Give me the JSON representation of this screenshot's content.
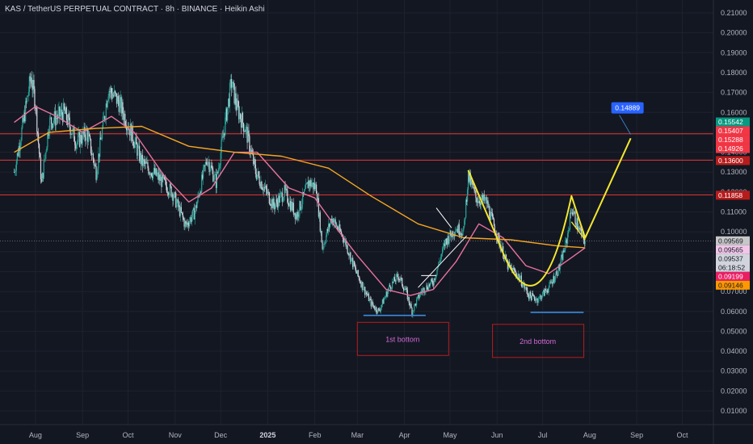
{
  "header": {
    "title": "KAS / TetherUS PERPETUAL CONTRACT · 8h · BINANCE · Heikin Ashi"
  },
  "colors": {
    "bg": "#131722",
    "grid": "#1e222d",
    "up": "#26a69a",
    "down": "#d1d4dc",
    "ma_fast": "#e9739e",
    "ma_slow": "#f5a623",
    "hline": "#e53935",
    "pattern": "#f3e72d",
    "support": "#3b8bdb"
  },
  "chart_data": {
    "type": "candlestick",
    "symbol": "KAS",
    "ylim": [
      0.005,
      0.215
    ],
    "y_ticks": [
      "0.21000",
      "0.20000",
      "0.19000",
      "0.18000",
      "0.17000",
      "0.16000",
      "0.15000",
      "0.14000",
      "0.13000",
      "0.12000",
      "0.11000",
      "0.10000",
      "0.09000",
      "0.08000",
      "0.07000",
      "0.06000",
      "0.05000",
      "0.04000",
      "0.03000",
      "0.02000",
      "0.01000"
    ],
    "x_ticks": [
      {
        "label": "Aug",
        "bold": false
      },
      {
        "label": "Sep",
        "bold": false
      },
      {
        "label": "Oct",
        "bold": false
      },
      {
        "label": "Nov",
        "bold": false
      },
      {
        "label": "Dec",
        "bold": false
      },
      {
        "label": "2025",
        "bold": true
      },
      {
        "label": "Feb",
        "bold": false
      },
      {
        "label": "Mar",
        "bold": false
      },
      {
        "label": "Apr",
        "bold": false
      },
      {
        "label": "May",
        "bold": false
      },
      {
        "label": "Jun",
        "bold": false
      },
      {
        "label": "Jul",
        "bold": false
      },
      {
        "label": "Aug",
        "bold": false
      },
      {
        "label": "Sep",
        "bold": false
      },
      {
        "label": "Oct",
        "bold": false
      }
    ],
    "close_path": [
      [
        "2024-07-18",
        0.13
      ],
      [
        "2024-07-24",
        0.155
      ],
      [
        "2024-07-29",
        0.178
      ],
      [
        "2024-08-01",
        0.165
      ],
      [
        "2024-08-05",
        0.124
      ],
      [
        "2024-08-10",
        0.155
      ],
      [
        "2024-08-20",
        0.16
      ],
      [
        "2024-08-28",
        0.145
      ],
      [
        "2024-09-04",
        0.15
      ],
      [
        "2024-09-10",
        0.13
      ],
      [
        "2024-09-18",
        0.172
      ],
      [
        "2024-09-25",
        0.165
      ],
      [
        "2024-10-03",
        0.15
      ],
      [
        "2024-10-10",
        0.135
      ],
      [
        "2024-10-20",
        0.128
      ],
      [
        "2024-10-30",
        0.12
      ],
      [
        "2024-11-08",
        0.103
      ],
      [
        "2024-11-14",
        0.11
      ],
      [
        "2024-11-22",
        0.137
      ],
      [
        "2024-11-28",
        0.125
      ],
      [
        "2024-12-05",
        0.16
      ],
      [
        "2024-12-08",
        0.175
      ],
      [
        "2024-12-12",
        0.162
      ],
      [
        "2024-12-18",
        0.15
      ],
      [
        "2024-12-24",
        0.13
      ],
      [
        "2025-01-05",
        0.113
      ],
      [
        "2025-01-12",
        0.12
      ],
      [
        "2025-01-20",
        0.108
      ],
      [
        "2025-01-28",
        0.125
      ],
      [
        "2025-02-02",
        0.122
      ],
      [
        "2025-02-06",
        0.092
      ],
      [
        "2025-02-12",
        0.107
      ],
      [
        "2025-02-20",
        0.097
      ],
      [
        "2025-02-28",
        0.08
      ],
      [
        "2025-03-10",
        0.064
      ],
      [
        "2025-03-15",
        0.06
      ],
      [
        "2025-03-22",
        0.072
      ],
      [
        "2025-03-28",
        0.078
      ],
      [
        "2025-04-02",
        0.07
      ],
      [
        "2025-04-06",
        0.06
      ],
      [
        "2025-04-12",
        0.07
      ],
      [
        "2025-04-20",
        0.075
      ],
      [
        "2025-04-28",
        0.095
      ],
      [
        "2025-05-05",
        0.102
      ],
      [
        "2025-05-10",
        0.1
      ],
      [
        "2025-05-13",
        0.128
      ],
      [
        "2025-05-18",
        0.117
      ],
      [
        "2025-05-25",
        0.115
      ],
      [
        "2025-06-01",
        0.098
      ],
      [
        "2025-06-08",
        0.083
      ],
      [
        "2025-06-15",
        0.078
      ],
      [
        "2025-06-22",
        0.068
      ],
      [
        "2025-06-28",
        0.066
      ],
      [
        "2025-07-05",
        0.072
      ],
      [
        "2025-07-12",
        0.082
      ],
      [
        "2025-07-17",
        0.096
      ],
      [
        "2025-07-20",
        0.112
      ],
      [
        "2025-07-25",
        0.101
      ],
      [
        "2025-07-29",
        0.095
      ]
    ],
    "ma_fast": [
      [
        "2024-07-18",
        0.155
      ],
      [
        "2024-08-01",
        0.163
      ],
      [
        "2024-08-15",
        0.158
      ],
      [
        "2024-09-01",
        0.15
      ],
      [
        "2024-09-20",
        0.158
      ],
      [
        "2024-10-05",
        0.15
      ],
      [
        "2024-10-25",
        0.128
      ],
      [
        "2024-11-10",
        0.115
      ],
      [
        "2024-11-25",
        0.122
      ],
      [
        "2024-12-10",
        0.14
      ],
      [
        "2024-12-25",
        0.14
      ],
      [
        "2025-01-15",
        0.122
      ],
      [
        "2025-02-01",
        0.117
      ],
      [
        "2025-02-15",
        0.102
      ],
      [
        "2025-03-01",
        0.088
      ],
      [
        "2025-03-20",
        0.071
      ],
      [
        "2025-04-05",
        0.068
      ],
      [
        "2025-04-20",
        0.071
      ],
      [
        "2025-05-05",
        0.085
      ],
      [
        "2025-05-20",
        0.104
      ],
      [
        "2025-06-05",
        0.097
      ],
      [
        "2025-06-20",
        0.083
      ],
      [
        "2025-07-05",
        0.079
      ],
      [
        "2025-07-20",
        0.087
      ],
      [
        "2025-07-29",
        0.092
      ]
    ],
    "ma_slow": [
      [
        "2024-07-18",
        0.14
      ],
      [
        "2024-08-10",
        0.15
      ],
      [
        "2024-09-10",
        0.152
      ],
      [
        "2024-10-10",
        0.153
      ],
      [
        "2024-11-10",
        0.143
      ],
      [
        "2024-12-10",
        0.14
      ],
      [
        "2025-01-10",
        0.138
      ],
      [
        "2025-02-10",
        0.132
      ],
      [
        "2025-03-10",
        0.118
      ],
      [
        "2025-04-10",
        0.104
      ],
      [
        "2025-05-10",
        0.097
      ],
      [
        "2025-06-10",
        0.096
      ],
      [
        "2025-07-10",
        0.093
      ],
      [
        "2025-07-29",
        0.092
      ]
    ],
    "hlines": [
      0.14926,
      0.136,
      0.11858
    ],
    "current_line": 0.09537,
    "price_badges": [
      {
        "value": 0.15542,
        "label": "0.15542",
        "bg": "#089981",
        "fg": "#ffffff"
      },
      {
        "value": 0.15407,
        "label": "0.15407",
        "bg": "#f23645",
        "fg": "#ffffff"
      },
      {
        "value": 0.15288,
        "label": "0.15288",
        "bg": "#f23645",
        "fg": "#ffffff"
      },
      {
        "value": 0.14926,
        "label": "0.14926",
        "bg": "#f23645",
        "fg": "#ffffff"
      },
      {
        "value": 0.136,
        "label": "0.13600",
        "bg": "#b71c1c",
        "fg": "#ffffff"
      },
      {
        "value": 0.11858,
        "label": "0.11858",
        "bg": "#b71c1c",
        "fg": "#ffffff"
      },
      {
        "value": 0.09569,
        "label": "0.09569",
        "bg": "#c7c7c7",
        "fg": "#131722"
      },
      {
        "value": 0.09565,
        "label": "0.09565",
        "bg": "#f1c6e8",
        "fg": "#131722"
      },
      {
        "value": 0.09537,
        "label": "0.09537",
        "bg": "#d1d4dc",
        "fg": "#131722",
        "sub": "06:18:52"
      },
      {
        "value": 0.09199,
        "label": "0.09199",
        "bg": "#e91e63",
        "fg": "#ffffff"
      },
      {
        "value": 0.09146,
        "label": "0.09146",
        "bg": "#ff9800",
        "fg": "#131722"
      }
    ],
    "target": {
      "label": "0.14889",
      "value": 0.14889
    },
    "annotations": [
      {
        "text": "1st bottom"
      },
      {
        "text": "2nd bottom"
      }
    ]
  }
}
